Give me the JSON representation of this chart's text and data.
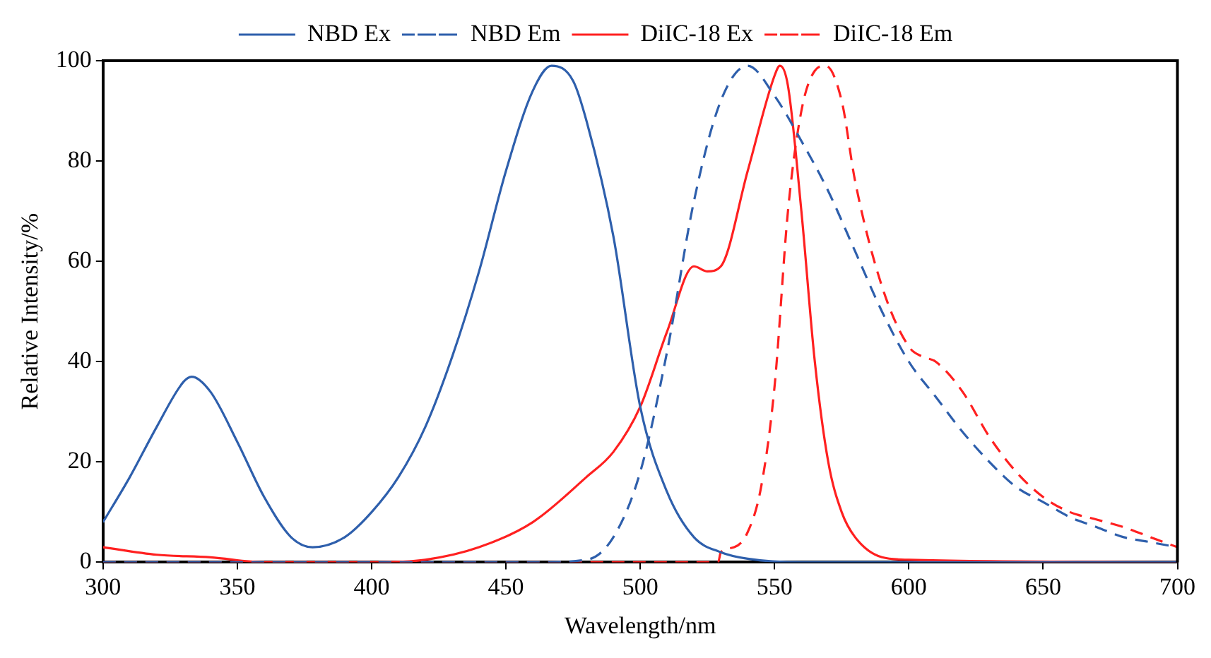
{
  "chart_data": {
    "type": "line",
    "xlabel": "Wavelength/nm",
    "ylabel": "Relative Intensity/%",
    "xlim": [
      300,
      700
    ],
    "xticks": [
      300,
      350,
      400,
      450,
      500,
      550,
      600,
      650,
      700
    ],
    "ylim": [
      0,
      100
    ],
    "yticks": [
      0,
      20,
      40,
      60,
      80,
      100
    ],
    "grid": false,
    "legend": "top",
    "marker": "none",
    "series": [
      {
        "name": "NBD Ex",
        "color": "#2e5fac",
        "line_style": "solid",
        "x": [
          300,
          310,
          320,
          330,
          333,
          340,
          350,
          360,
          370,
          378,
          390,
          400,
          410,
          420,
          430,
          440,
          450,
          460,
          467,
          475,
          480,
          490,
          500,
          510,
          520,
          530,
          540,
          560,
          700
        ],
        "values": [
          8,
          17,
          27,
          36,
          37,
          34,
          24,
          13,
          5,
          3,
          5,
          10,
          17,
          27,
          41,
          58,
          78,
          94,
          99,
          96,
          88,
          65,
          31,
          14,
          5,
          2,
          0.7,
          0,
          0
        ]
      },
      {
        "name": "NBD Em",
        "color": "#2e5fac",
        "line_style": "dashed",
        "x": [
          300,
          460,
          480,
          490,
          500,
          510,
          520,
          530,
          540,
          550,
          560,
          570,
          580,
          590,
          600,
          610,
          620,
          630,
          640,
          650,
          660,
          670,
          680,
          690,
          700
        ],
        "values": [
          0,
          0,
          0.5,
          5,
          18,
          42,
          72,
          92,
          99,
          93,
          84,
          74,
          62,
          50,
          40,
          33,
          26,
          20,
          15,
          12,
          9,
          7,
          5,
          4,
          3
        ]
      },
      {
        "name": "DiIC-18 Ex",
        "color": "#ff2020",
        "line_style": "solid",
        "x": [
          300,
          320,
          340,
          360,
          400,
          420,
          440,
          460,
          480,
          490,
          500,
          510,
          520,
          525,
          530,
          540,
          550,
          552,
          555,
          560,
          565,
          570,
          575,
          580,
          590,
          600,
          700
        ],
        "values": [
          3,
          1.5,
          1,
          0,
          0,
          0.5,
          3,
          8,
          17,
          22,
          31,
          46,
          59,
          58,
          59,
          78,
          97,
          99,
          95,
          70,
          40,
          20,
          10,
          5,
          1,
          0.5,
          0
        ]
      },
      {
        "name": "DiIC-18 Em",
        "color": "#ff2020",
        "line_style": "dashed",
        "x": [
          300,
          529,
          530,
          535,
          540,
          545,
          550,
          555,
          560,
          565,
          569,
          575,
          580,
          590,
          600,
          605,
          610,
          620,
          630,
          640,
          650,
          660,
          670,
          680,
          690,
          700
        ],
        "values": [
          0,
          0,
          2,
          3,
          6,
          15,
          35,
          70,
          90,
          98,
          99,
          92,
          76,
          55,
          43,
          41,
          40,
          34,
          25,
          18,
          13,
          10,
          8.5,
          7,
          5,
          3
        ]
      }
    ]
  }
}
